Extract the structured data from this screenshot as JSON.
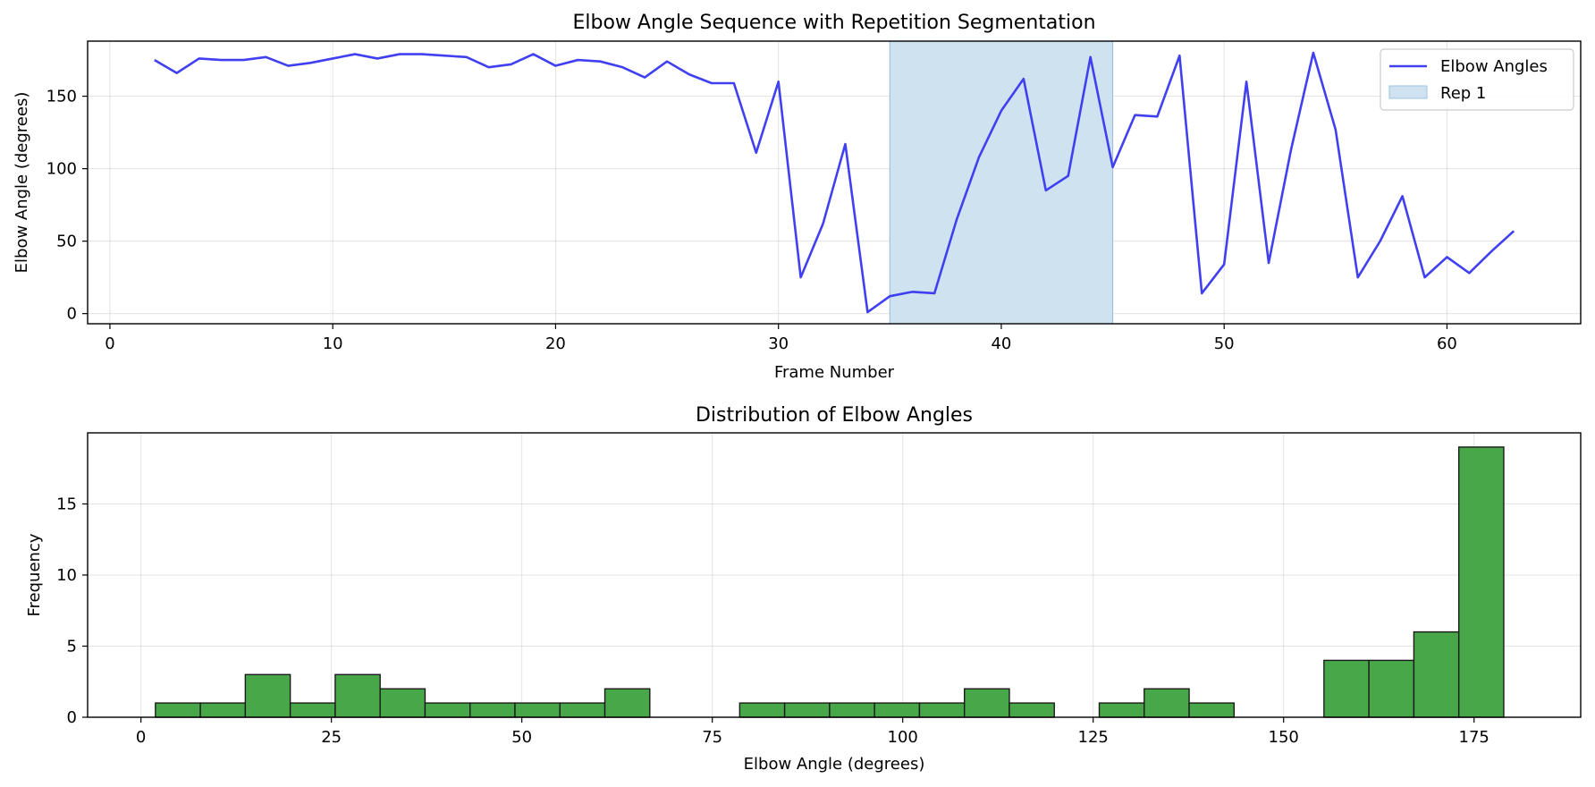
{
  "chart_data": [
    {
      "type": "line",
      "title": "Elbow Angle Sequence with Repetition Segmentation",
      "xlabel": "Frame Number",
      "ylabel": "Elbow Angle (degrees)",
      "xlim": [
        -1,
        66
      ],
      "ylim": [
        -7,
        188
      ],
      "xticks": [
        0,
        10,
        20,
        30,
        40,
        50,
        60
      ],
      "yticks": [
        0,
        50,
        100,
        150
      ],
      "grid": true,
      "legend": "top-right",
      "series": [
        {
          "name": "Elbow Angles",
          "color": "#4040f0",
          "x": [
            2,
            3,
            4,
            5,
            6,
            7,
            8,
            9,
            10,
            11,
            12,
            13,
            14,
            15,
            16,
            17,
            18,
            19,
            20,
            21,
            22,
            23,
            24,
            25,
            26,
            27,
            28,
            29,
            30,
            31,
            32,
            33,
            34,
            35,
            36,
            37,
            38,
            39,
            40,
            41,
            42,
            43,
            44,
            45,
            46,
            47,
            48,
            49,
            50,
            51,
            52,
            53,
            54,
            55,
            56,
            57,
            58,
            59,
            60,
            61,
            62,
            63
          ],
          "y": [
            175,
            166,
            176,
            175,
            175,
            177,
            171,
            173,
            176,
            179,
            176,
            179,
            179,
            178,
            177,
            170,
            172,
            179,
            171,
            175,
            174,
            170,
            163,
            174,
            165,
            159,
            159,
            111,
            160,
            25,
            62,
            117,
            1,
            12,
            15,
            14,
            65,
            108,
            140,
            162,
            85,
            95,
            177,
            101,
            137,
            136,
            178,
            14,
            34,
            160,
            35,
            113,
            180,
            127,
            25,
            50,
            81,
            25,
            39,
            28,
            43,
            57
          ]
        }
      ],
      "spans": [
        {
          "name": "Rep 1",
          "x0": 35,
          "x1": 45,
          "color": "#cfe2f0"
        }
      ]
    },
    {
      "type": "bar",
      "title": "Distribution of Elbow Angles",
      "xlabel": "Elbow Angle (degrees)",
      "ylabel": "Frequency",
      "xlim": [
        -7,
        189
      ],
      "ylim": [
        0,
        20
      ],
      "xticks": [
        0,
        25,
        50,
        75,
        100,
        125,
        150,
        175
      ],
      "yticks": [
        0,
        5,
        10,
        15
      ],
      "grid": true,
      "bin_start": 1.9,
      "bin_width": 5.9,
      "color": "#48a748",
      "edgecolor": "#1a1a1a",
      "counts": [
        1,
        1,
        3,
        1,
        3,
        2,
        1,
        1,
        1,
        1,
        2,
        0,
        0,
        1,
        1,
        1,
        1,
        1,
        2,
        1,
        0,
        1,
        2,
        1,
        0,
        0,
        4,
        4,
        6,
        19
      ]
    }
  ]
}
